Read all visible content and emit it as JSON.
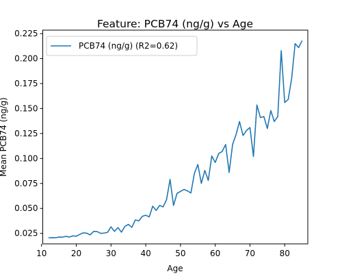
{
  "chart_data": {
    "type": "line",
    "title": "Feature: PCB74 (ng/g) vs Age",
    "xlabel": "Age",
    "ylabel": "Mean PCB74 (ng/g)",
    "xlim": [
      10.35,
      86.65
    ],
    "ylim": [
      0.0145,
      0.2285
    ],
    "xticks": [
      10,
      20,
      30,
      40,
      50,
      60,
      70,
      80
    ],
    "yticks": [
      0.025,
      0.05,
      0.075,
      0.1,
      0.125,
      0.15,
      0.175,
      0.2,
      0.225
    ],
    "ytick_labels": [
      "0.025",
      "0.050",
      "0.075",
      "0.100",
      "0.125",
      "0.150",
      "0.175",
      "0.200",
      "0.225"
    ],
    "grid": false,
    "legend_position": "upper-left",
    "series": [
      {
        "name": "PCB74 (ng/g) (R2=0.62)",
        "color": "#1f77b4",
        "x": [
          12,
          13,
          14,
          15,
          16,
          17,
          18,
          19,
          20,
          21,
          22,
          23,
          24,
          25,
          26,
          27,
          28,
          29,
          30,
          31,
          32,
          33,
          34,
          35,
          36,
          37,
          38,
          39,
          40,
          41,
          42,
          43,
          44,
          45,
          46,
          47,
          48,
          49,
          50,
          51,
          52,
          53,
          54,
          55,
          56,
          57,
          58,
          59,
          60,
          61,
          62,
          63,
          64,
          65,
          66,
          67,
          68,
          69,
          70,
          71,
          72,
          73,
          74,
          75,
          76,
          77,
          78,
          79,
          80,
          81,
          82,
          83,
          84,
          85
        ],
        "y": [
          0.0205,
          0.0207,
          0.0206,
          0.0213,
          0.0212,
          0.022,
          0.0213,
          0.0225,
          0.0222,
          0.024,
          0.0255,
          0.0252,
          0.0235,
          0.027,
          0.0268,
          0.025,
          0.0253,
          0.026,
          0.0315,
          0.027,
          0.0308,
          0.0262,
          0.032,
          0.034,
          0.031,
          0.0385,
          0.0375,
          0.042,
          0.0432,
          0.0415,
          0.0522,
          0.048,
          0.053,
          0.0515,
          0.059,
          0.079,
          0.053,
          0.065,
          0.067,
          0.069,
          0.0675,
          0.0655,
          0.085,
          0.094,
          0.075,
          0.088,
          0.078,
          0.1025,
          0.096,
          0.105,
          0.107,
          0.114,
          0.086,
          0.114,
          0.124,
          0.137,
          0.123,
          0.128,
          0.131,
          0.102,
          0.1535,
          0.141,
          0.142,
          0.13,
          0.148,
          0.137,
          0.142,
          0.208,
          0.156,
          0.159,
          0.18,
          0.215,
          0.211,
          0.218
        ]
      }
    ]
  }
}
